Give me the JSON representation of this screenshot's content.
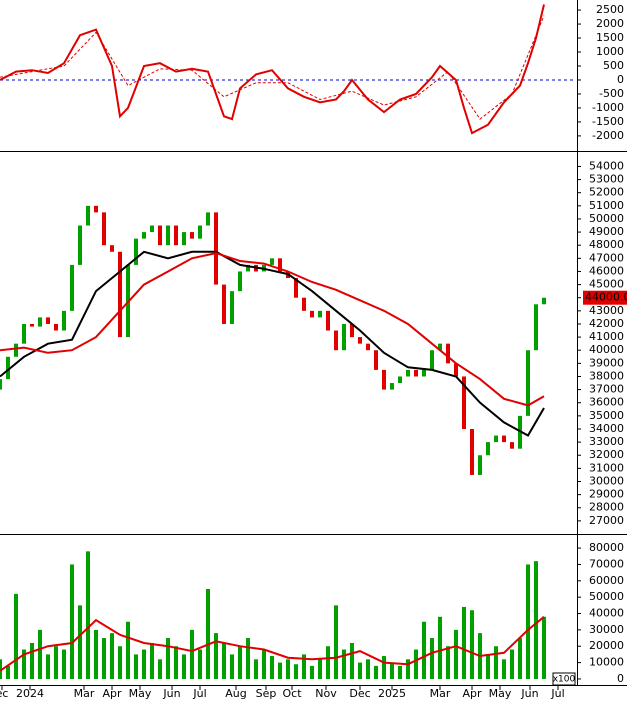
{
  "chart_data": [
    {
      "type": "line",
      "xlim": [
        0,
        288
      ],
      "ylim": [
        -2540,
        2860
      ],
      "yticks": [
        2500,
        2000,
        1500,
        1000,
        500,
        0,
        -500,
        -1000,
        -1500,
        -2000
      ],
      "zero_line": 0,
      "zero_color": "#0000cc",
      "series": [
        {
          "color": "#e00000",
          "dash": false,
          "x": [
            0,
            8,
            16,
            24,
            32,
            40,
            48,
            56,
            60,
            64,
            72,
            80,
            88,
            96,
            104,
            108,
            112,
            116,
            120,
            128,
            136,
            144,
            152,
            160,
            168,
            172,
            176,
            184,
            192,
            200,
            208,
            216,
            220,
            228,
            232,
            236,
            244,
            252,
            260,
            264,
            268,
            272
          ],
          "values": [
            0,
            300,
            350,
            250,
            600,
            1600,
            1800,
            500,
            -1300,
            -1000,
            500,
            600,
            300,
            400,
            300,
            -500,
            -1300,
            -1400,
            -300,
            200,
            350,
            -300,
            -600,
            -800,
            -700,
            -400,
            0,
            -700,
            -1150,
            -700,
            -500,
            100,
            500,
            0,
            -1000,
            -1900,
            -1600,
            -800,
            -200,
            600,
            1500,
            2700
          ]
        },
        {
          "color": "#e00000",
          "dash": true,
          "x": [
            0,
            16,
            32,
            48,
            64,
            80,
            96,
            112,
            128,
            144,
            160,
            176,
            192,
            208,
            224,
            240,
            256,
            272
          ],
          "values": [
            100,
            300,
            500,
            1700,
            -200,
            400,
            350,
            -600,
            -100,
            -100,
            -700,
            -400,
            -900,
            -600,
            300,
            -1400,
            -500,
            2300
          ]
        }
      ]
    },
    {
      "type": "candlestick",
      "xlim": [
        0,
        288
      ],
      "ylim": [
        26000,
        55100
      ],
      "yticks": [
        54000,
        53000,
        52000,
        51000,
        50000,
        49000,
        48000,
        47000,
        46000,
        45000,
        44000,
        43000,
        42000,
        41000,
        40000,
        39000,
        38000,
        37000,
        36000,
        35000,
        34000,
        33000,
        32000,
        31000,
        30000,
        29000,
        28000,
        27000
      ],
      "up_color": "#00a000",
      "down_color": "#e00000",
      "x": [
        0,
        4,
        8,
        12,
        16,
        20,
        24,
        28,
        32,
        36,
        40,
        44,
        48,
        52,
        56,
        60,
        64,
        68,
        72,
        76,
        80,
        84,
        88,
        92,
        96,
        100,
        104,
        108,
        112,
        116,
        120,
        124,
        128,
        132,
        136,
        140,
        144,
        148,
        152,
        156,
        160,
        164,
        168,
        172,
        176,
        180,
        184,
        188,
        192,
        196,
        200,
        204,
        208,
        212,
        216,
        220,
        224,
        228,
        232,
        236,
        240,
        244,
        248,
        252,
        256,
        260,
        264,
        268,
        272
      ],
      "open": [
        37000,
        37800,
        39500,
        40500,
        42000,
        41800,
        42500,
        42000,
        41500,
        43000,
        46500,
        49500,
        51000,
        50500,
        48000,
        47500,
        41000,
        46500,
        48500,
        49000,
        49500,
        48000,
        49500,
        48000,
        49000,
        48500,
        49500,
        50500,
        45000,
        42000,
        44500,
        46000,
        46500,
        46000,
        46500,
        47000,
        46000,
        45500,
        44000,
        43000,
        42500,
        43000,
        41500,
        40000,
        42000,
        41000,
        40500,
        40000,
        38500,
        37000,
        37500,
        38000,
        38500,
        38000,
        38500,
        40000,
        40500,
        39000,
        38000,
        34000,
        30500,
        32000,
        33000,
        33500,
        33000,
        32500,
        35000,
        40000,
        43500
      ],
      "close": [
        37800,
        39500,
        40500,
        42000,
        41800,
        42500,
        42000,
        41500,
        43000,
        46500,
        49500,
        51000,
        50500,
        48000,
        47500,
        41000,
        46500,
        48500,
        49000,
        49500,
        48000,
        49500,
        48000,
        49000,
        48500,
        49500,
        50500,
        45000,
        42000,
        44500,
        46000,
        46500,
        46000,
        46500,
        47000,
        46000,
        45500,
        44000,
        43000,
        42500,
        43000,
        41500,
        40000,
        42000,
        41000,
        40500,
        40000,
        38500,
        37000,
        37500,
        38000,
        38500,
        38000,
        38500,
        40000,
        40500,
        39000,
        38000,
        34000,
        30500,
        32000,
        33000,
        33500,
        33000,
        32500,
        35000,
        40000,
        43500,
        44000
      ],
      "series": [
        {
          "color": "#000000",
          "x": [
            0,
            12,
            24,
            36,
            48,
            60,
            72,
            84,
            96,
            108,
            120,
            132,
            144,
            156,
            168,
            180,
            192,
            204,
            216,
            228,
            240,
            252,
            264,
            272
          ],
          "values": [
            38000,
            39500,
            40500,
            40800,
            44500,
            46000,
            47500,
            47000,
            47500,
            47500,
            46500,
            46200,
            45800,
            44500,
            43000,
            41500,
            39800,
            38700,
            38500,
            38000,
            36000,
            34500,
            33500,
            35600
          ]
        },
        {
          "color": "#e00000",
          "x": [
            0,
            12,
            24,
            36,
            48,
            60,
            72,
            84,
            96,
            108,
            120,
            132,
            144,
            156,
            168,
            180,
            192,
            204,
            216,
            228,
            240,
            252,
            264,
            272
          ],
          "values": [
            40000,
            40200,
            39800,
            40000,
            41000,
            43000,
            45000,
            46000,
            47000,
            47400,
            46800,
            46600,
            46000,
            45200,
            44600,
            43800,
            43000,
            42000,
            40500,
            39000,
            37800,
            36300,
            35800,
            36500
          ]
        }
      ],
      "last_price": {
        "value": 44000,
        "label": "44000.00"
      }
    },
    {
      "type": "bar",
      "xlim": [
        0,
        288
      ],
      "ylim": [
        -3700,
        88000
      ],
      "yticks": [
        80000,
        70000,
        60000,
        50000,
        40000,
        30000,
        20000,
        10000,
        0
      ],
      "multiplier_label": "x100",
      "color": "#00a000",
      "x": [
        0,
        4,
        8,
        12,
        16,
        20,
        24,
        28,
        32,
        36,
        40,
        44,
        48,
        52,
        56,
        60,
        64,
        68,
        72,
        76,
        80,
        84,
        88,
        92,
        96,
        100,
        104,
        108,
        112,
        116,
        120,
        124,
        128,
        132,
        136,
        140,
        144,
        148,
        152,
        156,
        160,
        164,
        168,
        172,
        176,
        180,
        184,
        188,
        192,
        196,
        200,
        204,
        208,
        212,
        216,
        220,
        224,
        228,
        232,
        236,
        240,
        244,
        248,
        252,
        256,
        260,
        264,
        268,
        272
      ],
      "values": [
        12000,
        8000,
        52000,
        18000,
        22000,
        30000,
        15000,
        20000,
        18000,
        70000,
        45000,
        78000,
        30000,
        25000,
        28000,
        20000,
        35000,
        15000,
        18000,
        22000,
        12000,
        25000,
        20000,
        15000,
        30000,
        18000,
        55000,
        28000,
        22000,
        15000,
        20000,
        25000,
        12000,
        18000,
        14000,
        10000,
        12000,
        9000,
        15000,
        8000,
        12000,
        20000,
        45000,
        18000,
        22000,
        10000,
        12000,
        8000,
        14000,
        10000,
        8000,
        12000,
        18000,
        35000,
        25000,
        38000,
        20000,
        30000,
        44000,
        42000,
        28000,
        15000,
        20000,
        12000,
        18000,
        25000,
        70000,
        72000,
        38000
      ],
      "series": [
        {
          "color": "#e00000",
          "x": [
            0,
            12,
            24,
            36,
            48,
            60,
            72,
            84,
            96,
            108,
            120,
            132,
            144,
            156,
            168,
            180,
            192,
            204,
            216,
            228,
            240,
            252,
            264,
            272
          ],
          "values": [
            5000,
            15000,
            20000,
            22000,
            36000,
            27000,
            22000,
            20000,
            17000,
            23000,
            20000,
            18000,
            13000,
            12000,
            13000,
            17000,
            10000,
            9000,
            16000,
            20000,
            14000,
            16000,
            30000,
            38000
          ]
        }
      ],
      "xticks": [
        {
          "value": 1,
          "label": "ec"
        },
        {
          "value": 15,
          "label": "2024"
        },
        {
          "value": 42,
          "label": "Mar"
        },
        {
          "value": 56,
          "label": "Apr"
        },
        {
          "value": 70,
          "label": "May"
        },
        {
          "value": 86,
          "label": "Jun"
        },
        {
          "value": 100,
          "label": "Jul"
        },
        {
          "value": 118,
          "label": "Aug"
        },
        {
          "value": 133,
          "label": "Sep"
        },
        {
          "value": 146,
          "label": "Oct"
        },
        {
          "value": 163,
          "label": "Nov"
        },
        {
          "value": 180,
          "label": "Dec"
        },
        {
          "value": 196,
          "label": "2025"
        },
        {
          "value": 220,
          "label": "Mar"
        },
        {
          "value": 236,
          "label": "Apr"
        },
        {
          "value": 250,
          "label": "May"
        },
        {
          "value": 265,
          "label": "Jun"
        },
        {
          "value": 279,
          "label": "Jul"
        }
      ]
    }
  ]
}
